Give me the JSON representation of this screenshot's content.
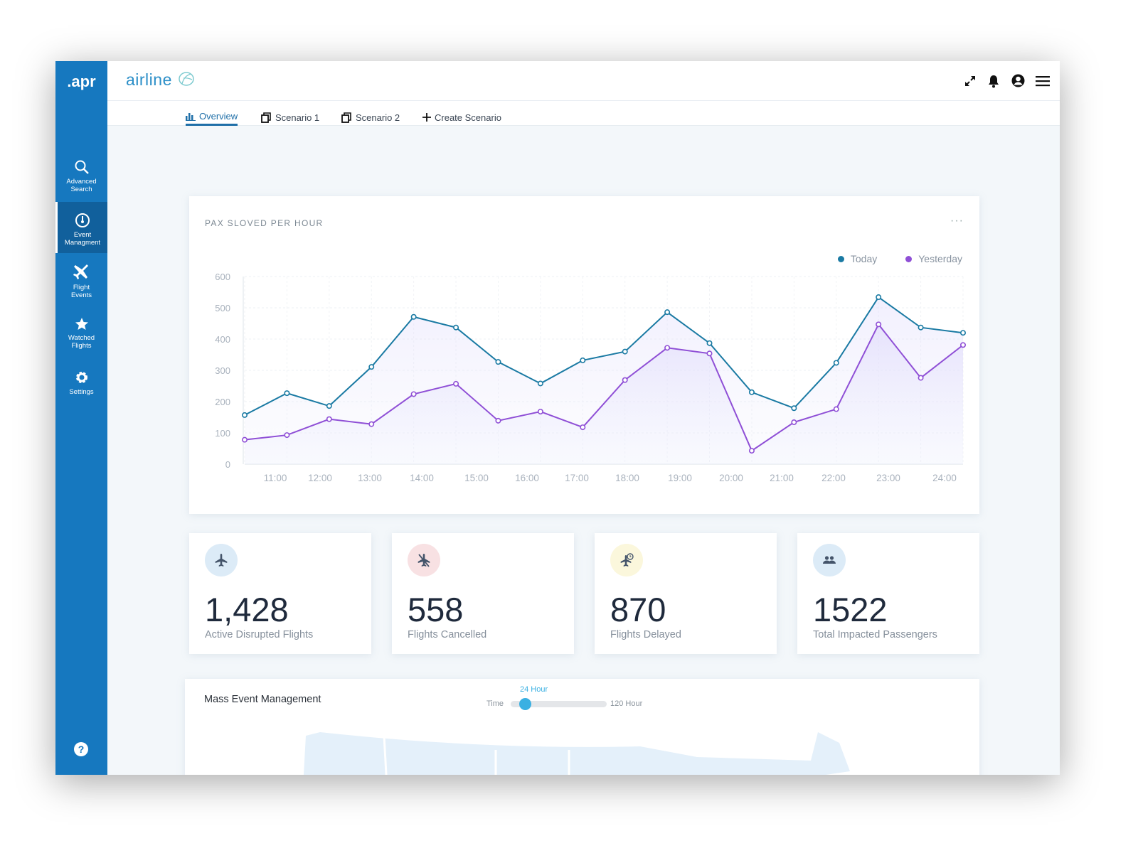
{
  "sidebar": {
    "logo": ".apr",
    "items": [
      {
        "label1": "Advanced",
        "label2": "Search",
        "icon": "search-icon"
      },
      {
        "label1": "Event",
        "label2": "Managment",
        "icon": "dashboard-gauge-icon",
        "active": true
      },
      {
        "label1": "Flight",
        "label2": "Events",
        "icon": "airplane-icon"
      },
      {
        "label1": "Watched",
        "label2": "Flights",
        "icon": "star-icon"
      },
      {
        "label1": "Settings",
        "label2": "",
        "icon": "gear-icon"
      }
    ],
    "help": "?"
  },
  "header": {
    "brand": "airline",
    "icons": [
      "expand-icon",
      "bell-icon",
      "user-icon",
      "menu-icon"
    ]
  },
  "tabs": [
    {
      "label": "Overview",
      "active": true
    },
    {
      "label": "Scenario 1"
    },
    {
      "label": "Scenario 2"
    },
    {
      "label": "Create Scenario"
    }
  ],
  "chart_card": {
    "title": "PAX SLOVED PER HOUR",
    "more": "···"
  },
  "chart_data": {
    "type": "area",
    "title": "PAX SLOVED PER HOUR",
    "x_tick_labels": [
      "11:00",
      "12:00",
      "13:00",
      "14:00",
      "15:00",
      "16:00",
      "17:00",
      "18:00",
      "19:00",
      "20:00",
      "21:00",
      "22:00",
      "23:00",
      "24:00"
    ],
    "y_ticks": [
      0,
      100,
      200,
      300,
      400,
      500,
      600
    ],
    "ylim": [
      0,
      600
    ],
    "grid": true,
    "legend": "top-right",
    "series": [
      {
        "name": "Today",
        "color": "#1a7aa3",
        "values": [
          157,
          227,
          186,
          311,
          471,
          437,
          327,
          258,
          332,
          360,
          486,
          387,
          230,
          179,
          324,
          534,
          437,
          420
        ]
      },
      {
        "name": "Yesterday",
        "color": "#8f4fd6",
        "values": [
          78,
          93,
          144,
          128,
          224,
          257,
          139,
          168,
          118,
          269,
          372,
          354,
          43,
          134,
          176,
          447,
          276,
          381
        ]
      }
    ]
  },
  "kpis": [
    {
      "value": "1,428",
      "label": "Active Disrupted Flights",
      "icon": "airplane-icon",
      "bg": "#dcebf7"
    },
    {
      "value": "558",
      "label": "Flights Cancelled",
      "icon": "airplane-cancelled-icon",
      "bg": "#f8e1e3"
    },
    {
      "value": "870",
      "label": "Flights Delayed",
      "icon": "airplane-clock-icon",
      "bg": "#fbf7dc"
    },
    {
      "value": "1522",
      "label": "Total Impacted Passengers",
      "icon": "people-icon",
      "bg": "#dcebf7"
    }
  ],
  "mass_event": {
    "title": "Mass Event Management",
    "slider_label": "Time",
    "slider_value": "24 Hour",
    "slider_max": "120 Hour",
    "slider_fraction": 0.15
  }
}
